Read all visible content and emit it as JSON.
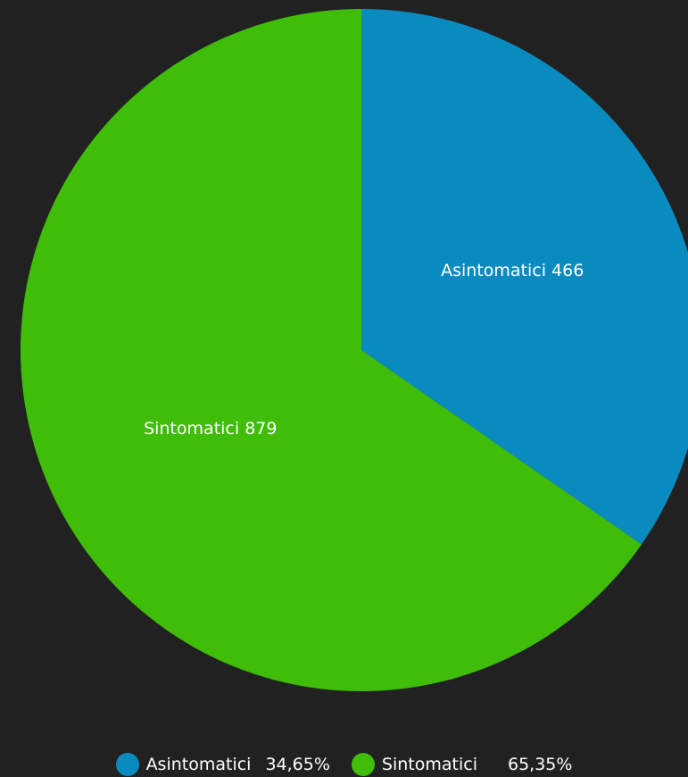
{
  "chart_data": {
    "type": "pie",
    "slices": [
      {
        "label": "Asintomatici",
        "value": 466,
        "percent_label": "34,65%",
        "color": "#0a8bc0"
      },
      {
        "label": "Sintomatici",
        "value": 879,
        "percent_label": "65,35%",
        "color": "#3fbd08"
      }
    ],
    "legend_placement": "bottom-center",
    "start_angle_deg": 0,
    "direction": "clockwise"
  },
  "background_color": "#212121"
}
